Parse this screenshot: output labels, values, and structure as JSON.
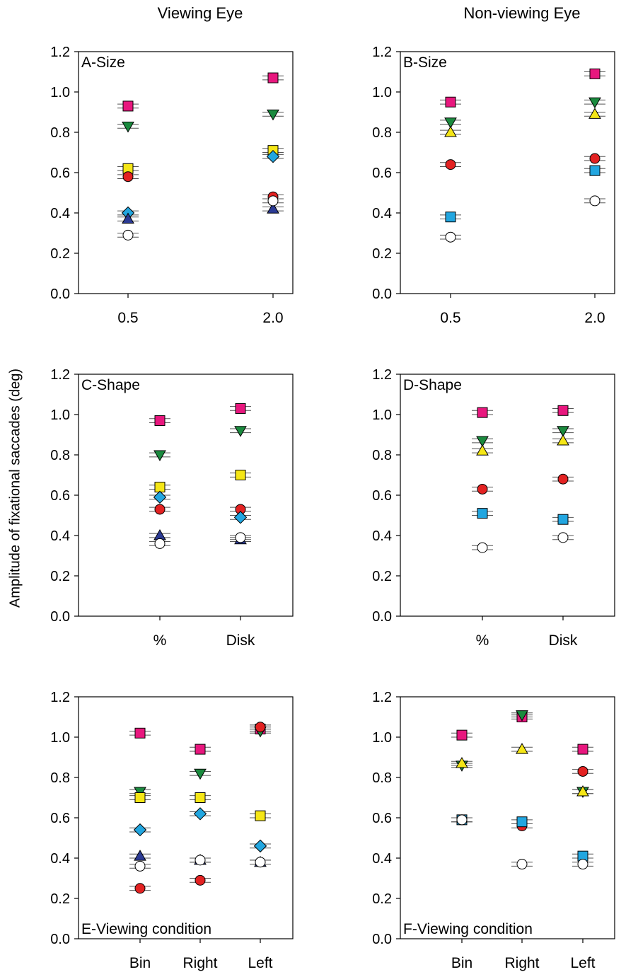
{
  "figure": {
    "column_titles": [
      "Viewing Eye",
      "Non-viewing Eye"
    ],
    "shared_ylabel": "Amplitude of fixational saccades (deg)"
  },
  "colors": {
    "magenta": "#e8177e",
    "green": "#1a8a3e",
    "yellow": "#f5e616",
    "red": "#e32222",
    "cyan": "#22a6e0",
    "navy": "#2b3a94",
    "white": "#ffffff"
  },
  "chart_data": [
    {
      "type": "scatter",
      "panel_label": "A-Size",
      "label_position": "top-left",
      "categories": [
        "0.5",
        "2.0"
      ],
      "ylim": [
        0,
        1.2
      ],
      "yticks": [
        "0.0",
        "0.2",
        "0.4",
        "0.6",
        "0.8",
        "1.0",
        "1.2"
      ],
      "grid": false,
      "series": [
        {
          "marker": "square",
          "color": "magenta",
          "values": [
            0.93,
            1.07
          ],
          "err": [
            0.01,
            0.01
          ]
        },
        {
          "marker": "triangle-down",
          "color": "green",
          "values": [
            0.83,
            0.89
          ],
          "err": [
            0.01,
            0.01
          ]
        },
        {
          "marker": "square",
          "color": "yellow",
          "values": [
            0.62,
            0.71
          ],
          "err": [
            0.01,
            0.01
          ]
        },
        {
          "marker": "circle",
          "color": "red",
          "values": [
            0.58,
            0.48
          ],
          "err": [
            0.01,
            0.01
          ]
        },
        {
          "marker": "diamond",
          "color": "cyan",
          "values": [
            0.4,
            0.68
          ],
          "err": [
            0.01,
            0.01
          ]
        },
        {
          "marker": "triangle-up",
          "color": "navy",
          "values": [
            0.37,
            0.42
          ],
          "err": [
            0.01,
            0.01
          ]
        },
        {
          "marker": "circle",
          "color": "white",
          "values": [
            0.29,
            0.46
          ],
          "err": [
            0.01,
            0.01
          ]
        }
      ]
    },
    {
      "type": "scatter",
      "panel_label": "B-Size",
      "label_position": "top-left",
      "categories": [
        "0.5",
        "2.0"
      ],
      "ylim": [
        0,
        1.2
      ],
      "yticks": [
        "0.0",
        "0.2",
        "0.4",
        "0.6",
        "0.8",
        "1.0",
        "1.2"
      ],
      "grid": false,
      "series": [
        {
          "marker": "square",
          "color": "magenta",
          "values": [
            0.95,
            1.09
          ],
          "err": [
            0.01,
            0.01
          ]
        },
        {
          "marker": "triangle-down",
          "color": "green",
          "values": [
            0.85,
            0.95
          ],
          "err": [
            0.01,
            0.01
          ]
        },
        {
          "marker": "triangle-up",
          "color": "yellow",
          "values": [
            0.8,
            0.89
          ],
          "err": [
            0.01,
            0.01
          ]
        },
        {
          "marker": "circle",
          "color": "red",
          "values": [
            0.64,
            0.67
          ],
          "err": [
            0.01,
            0.01
          ]
        },
        {
          "marker": "square",
          "color": "cyan",
          "values": [
            0.38,
            0.61
          ],
          "err": [
            0.01,
            0.01
          ]
        },
        {
          "marker": "circle",
          "color": "white",
          "values": [
            0.28,
            0.46
          ],
          "err": [
            0.01,
            0.01
          ]
        }
      ]
    },
    {
      "type": "scatter",
      "panel_label": "C-Shape",
      "label_position": "top-left",
      "categories": [
        "%",
        "Disk"
      ],
      "ylim": [
        0,
        1.2
      ],
      "yticks": [
        "0.0",
        "0.2",
        "0.4",
        "0.6",
        "0.8",
        "1.0",
        "1.2"
      ],
      "grid": false,
      "series": [
        {
          "marker": "square",
          "color": "magenta",
          "values": [
            0.97,
            1.03
          ],
          "err": [
            0.01,
            0.01
          ]
        },
        {
          "marker": "triangle-down",
          "color": "green",
          "values": [
            0.8,
            0.92
          ],
          "err": [
            0.01,
            0.01
          ]
        },
        {
          "marker": "square",
          "color": "yellow",
          "values": [
            0.64,
            0.7
          ],
          "err": [
            0.01,
            0.01
          ]
        },
        {
          "marker": "circle",
          "color": "red",
          "values": [
            0.53,
            0.53
          ],
          "err": [
            0.01,
            0.01
          ]
        },
        {
          "marker": "diamond",
          "color": "cyan",
          "values": [
            0.59,
            0.49
          ],
          "err": [
            0.01,
            0.01
          ]
        },
        {
          "marker": "triangle-up",
          "color": "navy",
          "values": [
            0.4,
            0.38
          ],
          "err": [
            0.01,
            0.01
          ]
        },
        {
          "marker": "circle",
          "color": "white",
          "values": [
            0.36,
            0.39
          ],
          "err": [
            0.01,
            0.01
          ]
        }
      ]
    },
    {
      "type": "scatter",
      "panel_label": "D-Shape",
      "label_position": "top-left",
      "categories": [
        "%",
        "Disk"
      ],
      "ylim": [
        0,
        1.2
      ],
      "yticks": [
        "0.0",
        "0.2",
        "0.4",
        "0.6",
        "0.8",
        "1.0",
        "1.2"
      ],
      "grid": false,
      "series": [
        {
          "marker": "square",
          "color": "magenta",
          "values": [
            1.01,
            1.02
          ],
          "err": [
            0.01,
            0.01
          ]
        },
        {
          "marker": "triangle-down",
          "color": "green",
          "values": [
            0.87,
            0.92
          ],
          "err": [
            0.01,
            0.01
          ]
        },
        {
          "marker": "triangle-up",
          "color": "yellow",
          "values": [
            0.82,
            0.87
          ],
          "err": [
            0.01,
            0.01
          ]
        },
        {
          "marker": "circle",
          "color": "red",
          "values": [
            0.63,
            0.68
          ],
          "err": [
            0.01,
            0.01
          ]
        },
        {
          "marker": "square",
          "color": "cyan",
          "values": [
            0.51,
            0.48
          ],
          "err": [
            0.01,
            0.01
          ]
        },
        {
          "marker": "circle",
          "color": "white",
          "values": [
            0.34,
            0.39
          ],
          "err": [
            0.01,
            0.01
          ]
        }
      ]
    },
    {
      "type": "scatter",
      "panel_label": "E-Viewing condition",
      "label_position": "bottom-left",
      "categories": [
        "Bin",
        "Right",
        "Left"
      ],
      "ylim": [
        0,
        1.2
      ],
      "yticks": [
        "0.0",
        "0.2",
        "0.4",
        "0.6",
        "0.8",
        "1.0",
        "1.2"
      ],
      "grid": false,
      "series": [
        {
          "marker": "square",
          "color": "magenta",
          "values": [
            1.02,
            0.94,
            1.04
          ],
          "err": [
            0.01,
            0.01,
            0.01
          ]
        },
        {
          "marker": "triangle-down",
          "color": "green",
          "values": [
            0.73,
            0.82,
            1.03
          ],
          "err": [
            0.01,
            0.01,
            0.01
          ]
        },
        {
          "marker": "square",
          "color": "yellow",
          "values": [
            0.7,
            0.7,
            0.61
          ],
          "err": [
            0.01,
            0.01,
            0.01
          ]
        },
        {
          "marker": "circle",
          "color": "red",
          "values": [
            0.25,
            0.29,
            1.05
          ],
          "err": [
            0.01,
            0.01,
            0.01
          ]
        },
        {
          "marker": "diamond",
          "color": "cyan",
          "values": [
            0.54,
            0.62,
            0.46
          ],
          "err": [
            0.01,
            0.01,
            0.01
          ]
        },
        {
          "marker": "triangle-up",
          "color": "navy",
          "values": [
            0.41,
            0.39,
            0.38
          ],
          "err": [
            0.01,
            0.01,
            0.01
          ]
        },
        {
          "marker": "circle",
          "color": "white",
          "values": [
            0.36,
            0.39,
            0.38
          ],
          "err": [
            0.01,
            0.01,
            0.01
          ]
        }
      ]
    },
    {
      "type": "scatter",
      "panel_label": "F-Viewing condition",
      "label_position": "bottom-left",
      "categories": [
        "Bin",
        "Right",
        "Left"
      ],
      "ylim": [
        0,
        1.2
      ],
      "yticks": [
        "0.0",
        "0.2",
        "0.4",
        "0.6",
        "0.8",
        "1.0",
        "1.2"
      ],
      "grid": false,
      "series": [
        {
          "marker": "square",
          "color": "magenta",
          "values": [
            1.01,
            1.1,
            0.94
          ],
          "err": [
            0.01,
            0.01,
            0.01
          ]
        },
        {
          "marker": "triangle-down",
          "color": "green",
          "values": [
            0.86,
            1.11,
            0.73
          ],
          "err": [
            0.01,
            0.01,
            0.01
          ]
        },
        {
          "marker": "triangle-up",
          "color": "yellow",
          "values": [
            0.87,
            0.94,
            0.73
          ],
          "err": [
            0.01,
            0.01,
            0.01
          ]
        },
        {
          "marker": "circle",
          "color": "red",
          "values": [
            0.59,
            0.56,
            0.83
          ],
          "err": [
            0.01,
            0.01,
            0.01
          ]
        },
        {
          "marker": "square",
          "color": "cyan",
          "values": [
            0.59,
            0.58,
            0.41
          ],
          "err": [
            0.01,
            0.01,
            0.01
          ]
        },
        {
          "marker": "circle",
          "color": "white",
          "values": [
            0.59,
            0.37,
            0.37
          ],
          "err": [
            0.01,
            0.01,
            0.01
          ]
        }
      ]
    }
  ]
}
